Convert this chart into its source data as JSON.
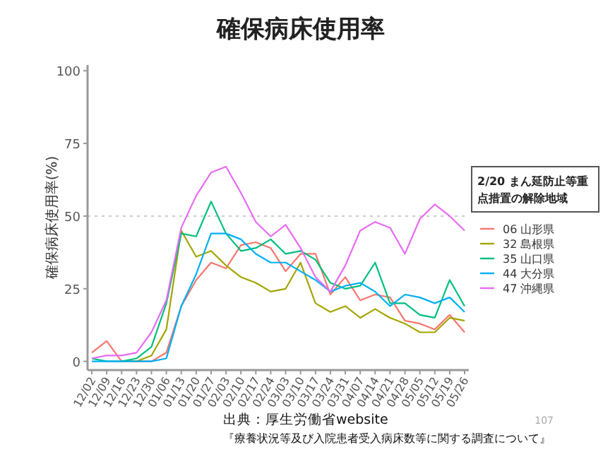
{
  "chart_data": {
    "type": "line",
    "title": "確保病床使用率",
    "ylabel": "確保病床使用率(%)",
    "categories": [
      "12/02",
      "12/09",
      "12/16",
      "12/23",
      "12/30",
      "01/06",
      "01/13",
      "01/20",
      "01/27",
      "02/03",
      "02/10",
      "02/17",
      "02/24",
      "03/03",
      "03/10",
      "03/17",
      "03/24",
      "03/31",
      "04/07",
      "04/14",
      "04/21",
      "04/28",
      "05/05",
      "05/12",
      "05/19",
      "05/26"
    ],
    "series": [
      {
        "name": "06 山形県",
        "color": "#f8766d",
        "values": [
          3,
          7,
          0,
          0,
          0,
          3,
          19,
          28,
          34,
          32,
          40,
          41,
          39,
          31,
          37,
          37,
          23,
          29,
          21,
          23,
          22,
          14,
          13,
          11,
          16,
          10
        ]
      },
      {
        "name": "32 島根県",
        "color": "#a3a500",
        "values": [
          null,
          null,
          0,
          0,
          2,
          11,
          45,
          36,
          38,
          33,
          29,
          27,
          24,
          25,
          34,
          20,
          17,
          19,
          15,
          18,
          15,
          13,
          10,
          10,
          15,
          14
        ]
      },
      {
        "name": "35 山口県",
        "color": "#00bf7d",
        "values": [
          1,
          0,
          0,
          1,
          5,
          20,
          44,
          43,
          55,
          44,
          38,
          39,
          42,
          37,
          38,
          35,
          27,
          25,
          26,
          34,
          20,
          20,
          16,
          15,
          28,
          19
        ]
      },
      {
        "name": "44 大分県",
        "color": "#00b0f6",
        "values": [
          0,
          0,
          0,
          0,
          0,
          1,
          19,
          30,
          44,
          44,
          42,
          37,
          34,
          34,
          31,
          28,
          24,
          26,
          27,
          24,
          19,
          23,
          22,
          20,
          22,
          17
        ]
      },
      {
        "name": "47 沖縄県",
        "color": "#e76bf3",
        "values": [
          1,
          2,
          2,
          3,
          10,
          21,
          46,
          57,
          65,
          67,
          58,
          48,
          43,
          47,
          39,
          29,
          24,
          33,
          45,
          48,
          46,
          37,
          49,
          54,
          50,
          45
        ]
      }
    ],
    "ylim": [
      -3,
      102
    ],
    "yticks": [
      0,
      25,
      50,
      75,
      100
    ],
    "ref_lines": [
      {
        "axis": "y",
        "value": 50,
        "color": "#cccccc",
        "line_style": "dotted"
      }
    ],
    "legend": "right",
    "legend_title": "2/20 まん延防止等重点措置の解除地域",
    "annotations": [
      "出典：厚生労働省website",
      "『療養状況等及び入院患者受入病床数等に関する調査について』",
      "107"
    ]
  }
}
